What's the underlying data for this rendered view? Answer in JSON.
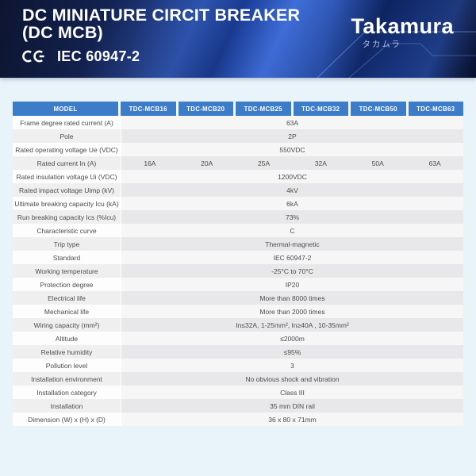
{
  "banner": {
    "title_line1": "DC MINIATURE CIRCIT BREAKER",
    "title_line2": "(DC MCB)",
    "ce_mark": "CE",
    "standard": "IEC 60947-2",
    "brand": "Takamura",
    "brand_japanese": "タカムラ"
  },
  "table": {
    "columns": [
      "MODEL",
      "TDC-MCB16",
      "TDC-MCB20",
      "TDC-MCB25",
      "TDC-MCB32",
      "TDC-MCB50",
      "TDC-MCB63"
    ],
    "rows": [
      {
        "label": "Frame degree rated current (A)",
        "value": "63A"
      },
      {
        "label": "Pole",
        "value": "2P"
      },
      {
        "label": "Rated operating voltage Ue (VDC)",
        "value": "550VDC"
      },
      {
        "label": "Rated current In (A)",
        "values": [
          "16A",
          "20A",
          "25A",
          "32A",
          "50A",
          "63A"
        ]
      },
      {
        "label": "Rated insulation voltage Ui (VDC)",
        "value": "1200VDC"
      },
      {
        "label": "Rated impact voltage Uimp (kV)",
        "value": "4kV"
      },
      {
        "label": "Ultimate breaking capacity Icu (kA)",
        "value": "6kA"
      },
      {
        "label": "Run breaking capacity Ics (%Icu)",
        "value": "73%"
      },
      {
        "label": "Characteristic curve",
        "value": "C"
      },
      {
        "label": "Trip type",
        "value": "Thermal-magnetic"
      },
      {
        "label": "Standard",
        "value": "IEC 60947-2"
      },
      {
        "label": "Working temperature",
        "value": "-25°C to 70°C"
      },
      {
        "label": "Protection degree",
        "value": "IP20"
      },
      {
        "label": "Electrical life",
        "value": "More than 8000 times"
      },
      {
        "label": "Mechanical life",
        "value": "More than 2000 times"
      },
      {
        "label": "Wiring capacity (mm²)",
        "value": "In≤32A, 1-25mm², In≥40A , 10-35mm²"
      },
      {
        "label": "Altitude",
        "value": "≤2000m"
      },
      {
        "label": "Relative humidity",
        "value": "≤95%"
      },
      {
        "label": "Pollution level",
        "value": "3"
      },
      {
        "label": "Installation environment",
        "value": "No obvious shock and vibration"
      },
      {
        "label": "Installation category",
        "value": "Class III"
      },
      {
        "label": "Installation",
        "value": "35 mm DIN rail"
      },
      {
        "label": "Dimension (W) x (H) x (D)",
        "value": "36 x 80 x 71mm"
      }
    ]
  },
  "colors": {
    "table_header_bg": "#3d7cc9",
    "row_alt_bg": "#efeff0",
    "banner_dark_navy": "#0d1530",
    "banner_bright_blue": "#2a5cd0",
    "page_bg": "#e9f3fa",
    "text_color": "#4d4d4d"
  }
}
